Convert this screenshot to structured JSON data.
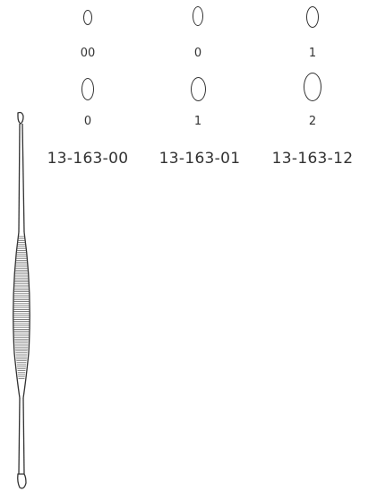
{
  "cup_rows": [
    {
      "name": "row-1",
      "items": [
        {
          "size_label": "00"
        },
        {
          "size_label": "0"
        },
        {
          "size_label": "1"
        }
      ]
    },
    {
      "name": "row-2",
      "items": [
        {
          "size_label": "0"
        },
        {
          "size_label": "1"
        },
        {
          "size_label": "2"
        }
      ]
    }
  ],
  "catalog_numbers": [
    "13-163-00",
    "13-163-01",
    "13-163-12"
  ],
  "colors": {
    "line": "#333333",
    "background": "#ffffff"
  },
  "icons": {
    "instrument": "double-ended-curette-icon"
  }
}
